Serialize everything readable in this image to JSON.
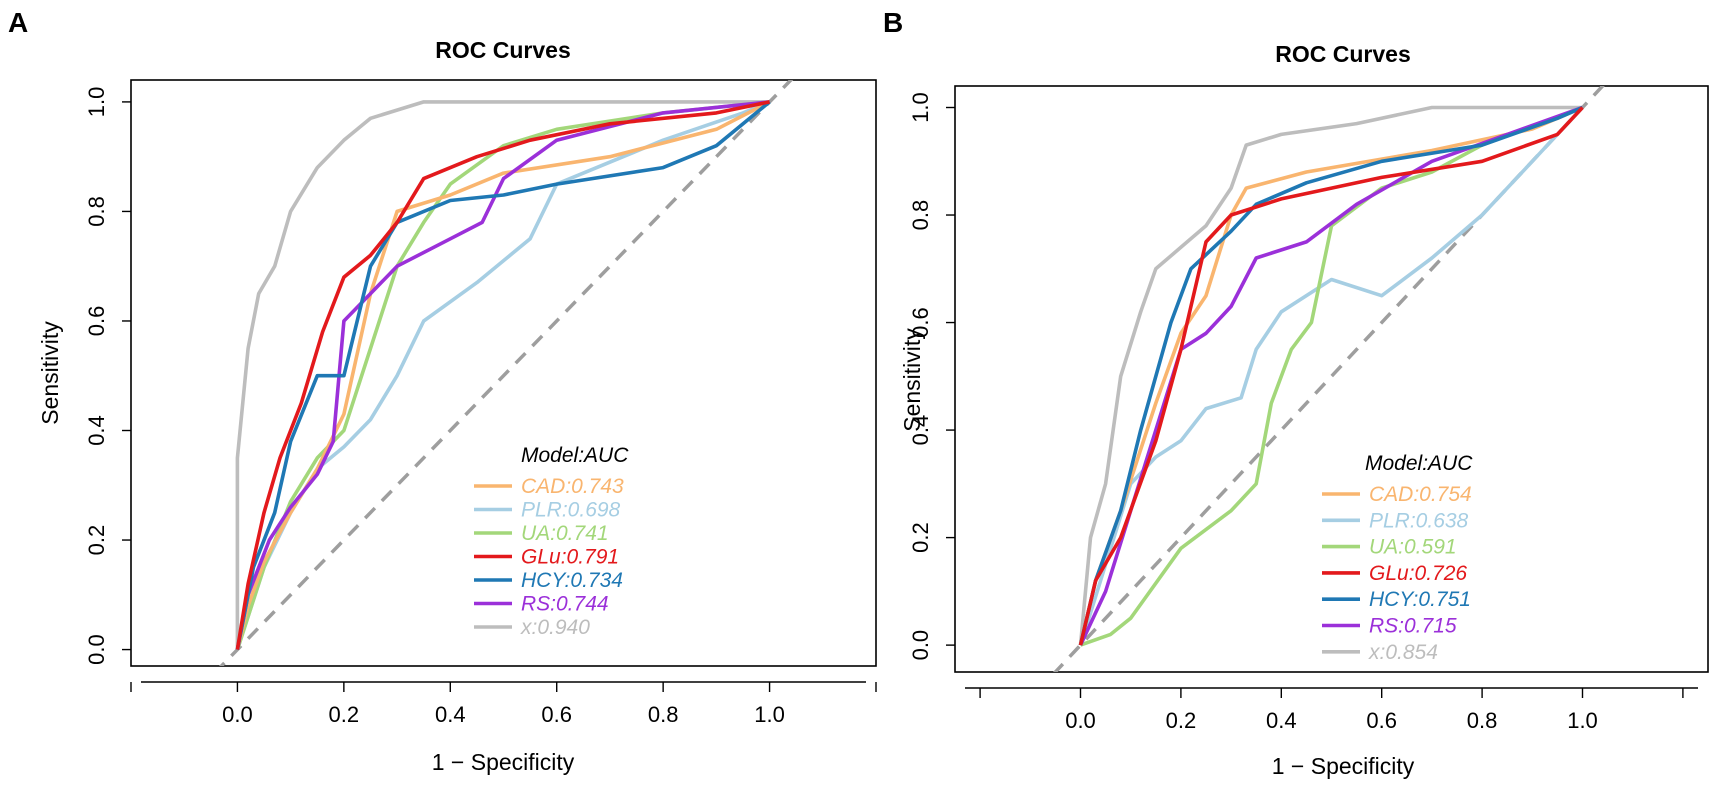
{
  "chart_data": [
    {
      "panel": "A",
      "type": "line",
      "title": "ROC Curves",
      "xlabel": "1 − Specificity",
      "ylabel": "Sensitivity",
      "xlim": [
        -0.2,
        1.2
      ],
      "ylim": [
        -0.03,
        1.04
      ],
      "xticks": [
        "0.0",
        "0.2",
        "0.4",
        "0.6",
        "0.8",
        "1.0"
      ],
      "yticks": [
        "0.0",
        "0.2",
        "0.4",
        "0.6",
        "0.8",
        "1.0"
      ],
      "legend_title": "Model:AUC",
      "legend_position": "bottom-right",
      "reference_line": "diagonal dashed",
      "series": [
        {
          "name": "CAD",
          "label": "CAD:0.743",
          "color": "#F9B56F",
          "points": [
            [
              0,
              0
            ],
            [
              0.02,
              0.08
            ],
            [
              0.05,
              0.16
            ],
            [
              0.1,
              0.25
            ],
            [
              0.15,
              0.33
            ],
            [
              0.2,
              0.43
            ],
            [
              0.25,
              0.65
            ],
            [
              0.3,
              0.8
            ],
            [
              0.4,
              0.83
            ],
            [
              0.5,
              0.87
            ],
            [
              0.7,
              0.9
            ],
            [
              0.9,
              0.95
            ],
            [
              1,
              1
            ]
          ]
        },
        {
          "name": "PLR",
          "label": "PLR:0.698",
          "color": "#A6CEE3",
          "points": [
            [
              0,
              0
            ],
            [
              0.05,
              0.15
            ],
            [
              0.1,
              0.25
            ],
            [
              0.15,
              0.33
            ],
            [
              0.2,
              0.37
            ],
            [
              0.25,
              0.42
            ],
            [
              0.3,
              0.5
            ],
            [
              0.35,
              0.6
            ],
            [
              0.45,
              0.67
            ],
            [
              0.55,
              0.75
            ],
            [
              0.6,
              0.85
            ],
            [
              0.8,
              0.93
            ],
            [
              0.95,
              0.98
            ],
            [
              1,
              1
            ]
          ]
        },
        {
          "name": "UA",
          "label": "UA:0.741",
          "color": "#A3D77A",
          "points": [
            [
              0,
              0
            ],
            [
              0.05,
              0.15
            ],
            [
              0.1,
              0.27
            ],
            [
              0.15,
              0.35
            ],
            [
              0.2,
              0.4
            ],
            [
              0.25,
              0.55
            ],
            [
              0.3,
              0.7
            ],
            [
              0.35,
              0.78
            ],
            [
              0.4,
              0.85
            ],
            [
              0.5,
              0.92
            ],
            [
              0.6,
              0.95
            ],
            [
              0.8,
              0.98
            ],
            [
              1,
              1
            ]
          ]
        },
        {
          "name": "GLu",
          "label": "GLu:0.791",
          "color": "#E3191C",
          "points": [
            [
              0,
              0
            ],
            [
              0.02,
              0.12
            ],
            [
              0.05,
              0.25
            ],
            [
              0.08,
              0.35
            ],
            [
              0.12,
              0.45
            ],
            [
              0.16,
              0.58
            ],
            [
              0.2,
              0.68
            ],
            [
              0.25,
              0.72
            ],
            [
              0.3,
              0.78
            ],
            [
              0.35,
              0.86
            ],
            [
              0.45,
              0.9
            ],
            [
              0.55,
              0.93
            ],
            [
              0.7,
              0.96
            ],
            [
              0.9,
              0.98
            ],
            [
              1,
              1
            ]
          ]
        },
        {
          "name": "HCY",
          "label": "HCY:0.734",
          "color": "#1F78B4",
          "points": [
            [
              0,
              0
            ],
            [
              0.03,
              0.15
            ],
            [
              0.07,
              0.25
            ],
            [
              0.1,
              0.38
            ],
            [
              0.15,
              0.5
            ],
            [
              0.2,
              0.5
            ],
            [
              0.25,
              0.7
            ],
            [
              0.3,
              0.78
            ],
            [
              0.4,
              0.82
            ],
            [
              0.5,
              0.83
            ],
            [
              0.6,
              0.85
            ],
            [
              0.8,
              0.88
            ],
            [
              0.9,
              0.92
            ],
            [
              1,
              1
            ]
          ]
        },
        {
          "name": "RS",
          "label": "RS:0.744",
          "color": "#9B30D9",
          "points": [
            [
              0,
              0
            ],
            [
              0.02,
              0.1
            ],
            [
              0.06,
              0.2
            ],
            [
              0.1,
              0.26
            ],
            [
              0.15,
              0.32
            ],
            [
              0.18,
              0.38
            ],
            [
              0.2,
              0.6
            ],
            [
              0.25,
              0.65
            ],
            [
              0.3,
              0.7
            ],
            [
              0.4,
              0.75
            ],
            [
              0.46,
              0.78
            ],
            [
              0.5,
              0.86
            ],
            [
              0.6,
              0.93
            ],
            [
              0.8,
              0.98
            ],
            [
              1,
              1
            ]
          ]
        },
        {
          "name": "x",
          "label": "x:0.940",
          "color": "#BDBDBD",
          "points": [
            [
              0,
              0
            ],
            [
              0,
              0.35
            ],
            [
              0.02,
              0.55
            ],
            [
              0.04,
              0.65
            ],
            [
              0.07,
              0.7
            ],
            [
              0.1,
              0.8
            ],
            [
              0.15,
              0.88
            ],
            [
              0.2,
              0.93
            ],
            [
              0.25,
              0.97
            ],
            [
              0.35,
              1.0
            ],
            [
              1,
              1
            ]
          ]
        }
      ]
    },
    {
      "panel": "B",
      "type": "line",
      "title": "ROC Curves",
      "xlabel": "1 − Specificity",
      "ylabel": "Sensitivity",
      "xlim": [
        -0.25,
        1.25
      ],
      "ylim": [
        -0.05,
        1.04
      ],
      "xticks": [
        "0.0",
        "0.2",
        "0.4",
        "0.6",
        "0.8",
        "1.0"
      ],
      "yticks": [
        "0.0",
        "0.2",
        "0.4",
        "0.6",
        "0.8",
        "1.0"
      ],
      "legend_title": "Model:AUC",
      "legend_position": "bottom-right",
      "reference_line": "diagonal dashed",
      "series": [
        {
          "name": "CAD",
          "label": "CAD:0.754",
          "color": "#F9B56F",
          "points": [
            [
              0,
              0
            ],
            [
              0.03,
              0.12
            ],
            [
              0.08,
              0.25
            ],
            [
              0.15,
              0.45
            ],
            [
              0.2,
              0.58
            ],
            [
              0.25,
              0.65
            ],
            [
              0.3,
              0.8
            ],
            [
              0.33,
              0.85
            ],
            [
              0.45,
              0.88
            ],
            [
              0.7,
              0.92
            ],
            [
              0.9,
              0.96
            ],
            [
              1,
              1
            ]
          ]
        },
        {
          "name": "PLR",
          "label": "PLR:0.638",
          "color": "#A6CEE3",
          "points": [
            [
              0,
              0
            ],
            [
              0.05,
              0.15
            ],
            [
              0.1,
              0.3
            ],
            [
              0.15,
              0.35
            ],
            [
              0.2,
              0.38
            ],
            [
              0.25,
              0.44
            ],
            [
              0.32,
              0.46
            ],
            [
              0.35,
              0.55
            ],
            [
              0.4,
              0.62
            ],
            [
              0.5,
              0.68
            ],
            [
              0.6,
              0.65
            ],
            [
              0.7,
              0.72
            ],
            [
              0.8,
              0.8
            ],
            [
              0.9,
              0.9
            ],
            [
              1,
              1
            ]
          ]
        },
        {
          "name": "UA",
          "label": "UA:0.591",
          "color": "#A3D77A",
          "points": [
            [
              0,
              0
            ],
            [
              0.06,
              0.02
            ],
            [
              0.1,
              0.05
            ],
            [
              0.2,
              0.18
            ],
            [
              0.3,
              0.25
            ],
            [
              0.35,
              0.3
            ],
            [
              0.38,
              0.45
            ],
            [
              0.42,
              0.55
            ],
            [
              0.46,
              0.6
            ],
            [
              0.5,
              0.78
            ],
            [
              0.6,
              0.85
            ],
            [
              0.7,
              0.88
            ],
            [
              0.8,
              0.93
            ],
            [
              1,
              1
            ]
          ]
        },
        {
          "name": "GLu",
          "label": "GLu:0.726",
          "color": "#E3191C",
          "points": [
            [
              0,
              0
            ],
            [
              0.03,
              0.12
            ],
            [
              0.08,
              0.2
            ],
            [
              0.15,
              0.38
            ],
            [
              0.2,
              0.55
            ],
            [
              0.25,
              0.75
            ],
            [
              0.3,
              0.8
            ],
            [
              0.4,
              0.83
            ],
            [
              0.5,
              0.85
            ],
            [
              0.6,
              0.87
            ],
            [
              0.8,
              0.9
            ],
            [
              0.95,
              0.95
            ],
            [
              1,
              1
            ]
          ]
        },
        {
          "name": "HCY",
          "label": "HCY:0.751",
          "color": "#1F78B4",
          "points": [
            [
              0,
              0
            ],
            [
              0.03,
              0.12
            ],
            [
              0.08,
              0.25
            ],
            [
              0.12,
              0.4
            ],
            [
              0.18,
              0.6
            ],
            [
              0.22,
              0.7
            ],
            [
              0.3,
              0.77
            ],
            [
              0.35,
              0.82
            ],
            [
              0.45,
              0.86
            ],
            [
              0.6,
              0.9
            ],
            [
              0.8,
              0.93
            ],
            [
              0.95,
              0.98
            ],
            [
              1,
              1
            ]
          ]
        },
        {
          "name": "RS",
          "label": "RS:0.715",
          "color": "#9B30D9",
          "points": [
            [
              0,
              0
            ],
            [
              0.05,
              0.1
            ],
            [
              0.1,
              0.25
            ],
            [
              0.15,
              0.4
            ],
            [
              0.2,
              0.55
            ],
            [
              0.25,
              0.58
            ],
            [
              0.3,
              0.63
            ],
            [
              0.35,
              0.72
            ],
            [
              0.45,
              0.75
            ],
            [
              0.55,
              0.82
            ],
            [
              0.7,
              0.9
            ],
            [
              0.85,
              0.95
            ],
            [
              1,
              1
            ]
          ]
        },
        {
          "name": "x",
          "label": "x:0.854",
          "color": "#BDBDBD",
          "points": [
            [
              0,
              0
            ],
            [
              0.02,
              0.2
            ],
            [
              0.05,
              0.3
            ],
            [
              0.08,
              0.5
            ],
            [
              0.12,
              0.62
            ],
            [
              0.15,
              0.7
            ],
            [
              0.2,
              0.74
            ],
            [
              0.25,
              0.78
            ],
            [
              0.3,
              0.85
            ],
            [
              0.33,
              0.93
            ],
            [
              0.4,
              0.95
            ],
            [
              0.55,
              0.97
            ],
            [
              0.7,
              1.0
            ],
            [
              1,
              1
            ]
          ]
        }
      ]
    }
  ]
}
